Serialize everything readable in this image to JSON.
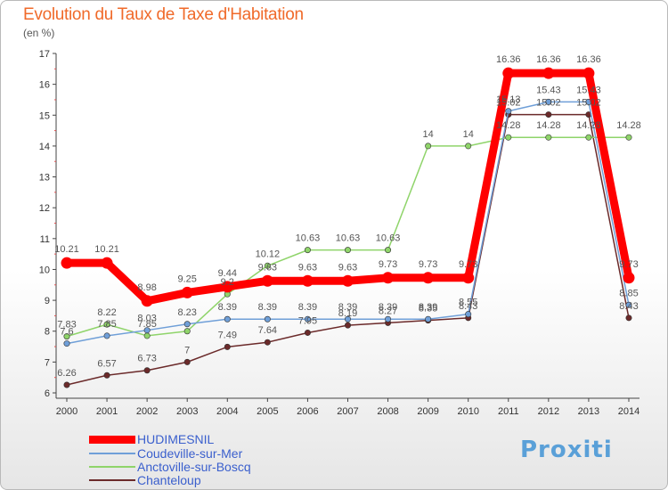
{
  "header": {
    "title": "Evolution du Taux de Taxe d'Habitation",
    "unit": "(en %)"
  },
  "logo": {
    "text": "Proxiti"
  },
  "chart_data": {
    "type": "line",
    "title": "Evolution du Taux de Taxe d'Habitation",
    "ylabel": "(en %)",
    "xlabel": "",
    "ylim": [
      6,
      17
    ],
    "yticks": [
      6,
      7,
      8,
      9,
      10,
      11,
      12,
      13,
      14,
      15,
      16,
      17
    ],
    "grid": false,
    "legend_placement": "bottom-left",
    "categories": [
      "2000",
      "2001",
      "2002",
      "2003",
      "2004",
      "2005",
      "2006",
      "2007",
      "2008",
      "2009",
      "2010",
      "2011",
      "2012",
      "2013",
      "2014"
    ],
    "series": [
      {
        "name": "HUDIMESNIL",
        "color": "#ff0000",
        "values": [
          10.21,
          10.21,
          8.98,
          9.25,
          9.44,
          9.63,
          9.63,
          9.63,
          9.73,
          9.73,
          9.73,
          16.36,
          16.36,
          16.36,
          9.73
        ],
        "labels": [
          "10.21",
          "10.21",
          "8.98",
          "9.25",
          "9.44",
          "9.63",
          "9.63",
          "9.63",
          "9.73",
          "9.73",
          "9.73",
          "16.36",
          "16.36",
          "16.36",
          "9.73"
        ]
      },
      {
        "name": "Coudeville-sur-Mer",
        "color": "#6f9fd8",
        "values": [
          7.6,
          7.85,
          8.03,
          8.23,
          8.39,
          8.39,
          8.39,
          8.39,
          8.39,
          8.39,
          8.55,
          15.13,
          15.43,
          15.43,
          8.85
        ],
        "labels": [
          "7.6",
          "7.85",
          "8.03",
          "8.23",
          "8.39",
          "8.39",
          "8.39",
          "8.39",
          "8.39",
          "8.39",
          "8.55",
          "15.13",
          "15.43",
          "15.43",
          "8.85"
        ]
      },
      {
        "name": "Anctoville-sur-Boscq",
        "color": "#8fd46a",
        "values": [
          7.83,
          8.22,
          7.85,
          8.0,
          9.2,
          10.12,
          10.63,
          10.63,
          10.63,
          14.0,
          14.0,
          14.28,
          14.28,
          14.28,
          14.28
        ],
        "labels": [
          "7.83",
          "8.22",
          "7.85",
          "",
          "9.2",
          "10.12",
          "10.63",
          "10.63",
          "10.63",
          "14",
          "14",
          "14.28",
          "14.28",
          "14.28",
          "14.28"
        ]
      },
      {
        "name": "Chanteloup",
        "color": "#6b2a2a",
        "values": [
          6.26,
          6.57,
          6.73,
          7.0,
          7.49,
          7.64,
          7.95,
          8.19,
          8.27,
          8.35,
          8.43,
          15.02,
          15.02,
          15.02,
          8.43
        ],
        "labels": [
          "6.26",
          "6.57",
          "6.73",
          "7",
          "7.49",
          "7.64",
          "7.95",
          "8.19",
          "8.27",
          "8.35",
          "8.43",
          "15.02",
          "15.02",
          "15.02",
          "8.43"
        ]
      }
    ]
  }
}
